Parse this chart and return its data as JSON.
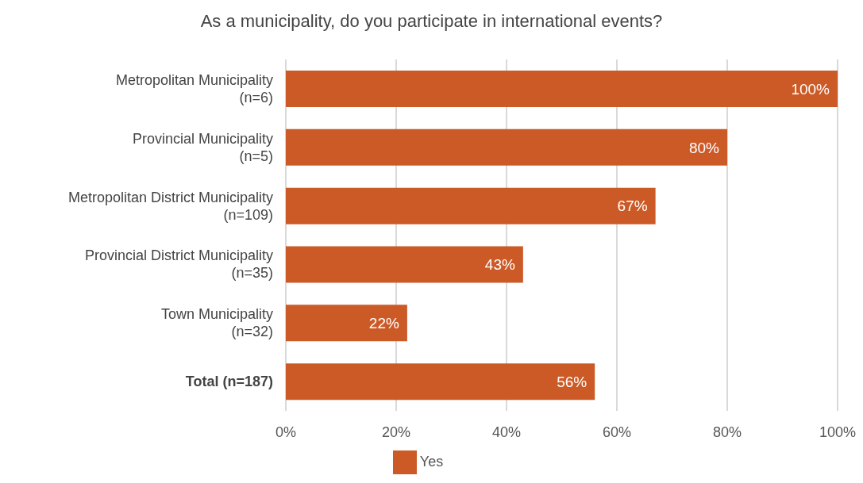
{
  "chart_data": {
    "type": "bar",
    "orientation": "horizontal",
    "title": "As a municipality, do you participate in international events?",
    "categories": [
      "Metropolitan Municipality\n(n=6)",
      "Provincial Municipality\n(n=5)",
      "Metropolitan District Municipality\n(n=109)",
      "Provincial District Municipality\n(n=35)",
      "Town Municipality\n(n=32)",
      "Total (n=187)"
    ],
    "series": [
      {
        "name": "Yes",
        "color": "#cc5a27",
        "values": [
          100,
          80,
          67,
          43,
          22,
          56
        ],
        "value_labels": [
          "100%",
          "80%",
          "67%",
          "43%",
          "22%",
          "56%"
        ]
      }
    ],
    "xlim": [
      0,
      100
    ],
    "xticks": [
      {
        "value": 0,
        "label": "0%"
      },
      {
        "value": 20,
        "label": "20%"
      },
      {
        "value": 40,
        "label": "40%"
      },
      {
        "value": 60,
        "label": "60%"
      },
      {
        "value": 80,
        "label": "80%"
      },
      {
        "value": 100,
        "label": "100%"
      }
    ],
    "grid": "x",
    "legend": "bottom"
  }
}
